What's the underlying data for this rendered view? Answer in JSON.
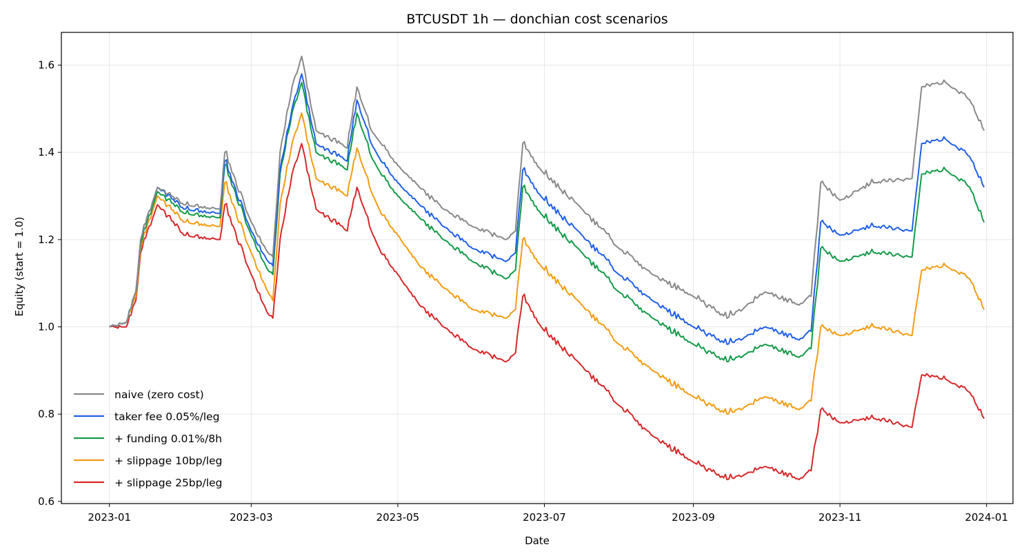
{
  "chart_data": {
    "type": "line",
    "title": "BTCUSDT 1h — donchian cost scenarios",
    "xlabel": "Date",
    "ylabel": "Equity (start = 1.0)",
    "xlim": [
      "2022-12-12",
      "2024-01-12"
    ],
    "ylim": [
      0.595,
      1.675
    ],
    "x_ticks": [
      "2023-01",
      "2023-03",
      "2023-05",
      "2023-07",
      "2023-09",
      "2023-11",
      "2024-01"
    ],
    "y_ticks": [
      "0.6",
      "0.8",
      "1.0",
      "1.2",
      "1.4",
      "1.6"
    ],
    "grid": true,
    "legend_position": "lower-left",
    "x": [
      "2023-01-01",
      "2023-01-08",
      "2023-01-12",
      "2023-01-14",
      "2023-01-21",
      "2023-02-01",
      "2023-02-16",
      "2023-02-18",
      "2023-03-01",
      "2023-03-08",
      "2023-03-10",
      "2023-03-13",
      "2023-03-18",
      "2023-03-22",
      "2023-03-28",
      "2023-04-10",
      "2023-04-14",
      "2023-04-20",
      "2023-04-24",
      "2023-05-01",
      "2023-05-10",
      "2023-05-20",
      "2023-06-01",
      "2023-06-15",
      "2023-06-19",
      "2023-06-22",
      "2023-07-01",
      "2023-07-15",
      "2023-08-01",
      "2023-08-15",
      "2023-09-01",
      "2023-09-15",
      "2023-10-01",
      "2023-10-15",
      "2023-10-20",
      "2023-10-24",
      "2023-11-01",
      "2023-11-15",
      "2023-12-01",
      "2023-12-05",
      "2023-12-15",
      "2023-12-25",
      "2023-12-31"
    ],
    "series": [
      {
        "name": "naive (zero cost)",
        "color": "#888888",
        "values": [
          1.0,
          1.01,
          1.08,
          1.2,
          1.32,
          1.28,
          1.27,
          1.4,
          1.24,
          1.17,
          1.16,
          1.4,
          1.55,
          1.62,
          1.45,
          1.41,
          1.55,
          1.45,
          1.42,
          1.37,
          1.32,
          1.27,
          1.23,
          1.2,
          1.22,
          1.42,
          1.35,
          1.28,
          1.18,
          1.12,
          1.07,
          1.02,
          1.08,
          1.05,
          1.07,
          1.33,
          1.29,
          1.33,
          1.34,
          1.55,
          1.56,
          1.52,
          1.45
        ]
      },
      {
        "name": "taker fee 0.05%/leg",
        "color": "#1f5fe8",
        "values": [
          1.0,
          1.01,
          1.08,
          1.2,
          1.32,
          1.27,
          1.26,
          1.38,
          1.22,
          1.15,
          1.14,
          1.36,
          1.5,
          1.58,
          1.42,
          1.38,
          1.52,
          1.42,
          1.38,
          1.33,
          1.28,
          1.23,
          1.18,
          1.15,
          1.17,
          1.36,
          1.29,
          1.22,
          1.12,
          1.06,
          1.0,
          0.96,
          1.0,
          0.97,
          0.99,
          1.24,
          1.21,
          1.23,
          1.22,
          1.42,
          1.43,
          1.39,
          1.32
        ]
      },
      {
        "name": "+ funding 0.01%/8h",
        "color": "#149a48",
        "values": [
          1.0,
          1.01,
          1.08,
          1.19,
          1.31,
          1.26,
          1.25,
          1.37,
          1.21,
          1.13,
          1.12,
          1.35,
          1.49,
          1.56,
          1.4,
          1.36,
          1.49,
          1.39,
          1.35,
          1.3,
          1.25,
          1.2,
          1.15,
          1.11,
          1.13,
          1.32,
          1.25,
          1.18,
          1.08,
          1.02,
          0.96,
          0.92,
          0.96,
          0.93,
          0.95,
          1.18,
          1.15,
          1.17,
          1.16,
          1.35,
          1.36,
          1.32,
          1.24
        ]
      },
      {
        "name": "+ slippage 10bp/leg",
        "color": "#f39c12",
        "values": [
          1.0,
          1.01,
          1.07,
          1.18,
          1.3,
          1.24,
          1.23,
          1.33,
          1.17,
          1.08,
          1.06,
          1.28,
          1.42,
          1.49,
          1.34,
          1.3,
          1.41,
          1.31,
          1.26,
          1.21,
          1.14,
          1.09,
          1.04,
          1.02,
          1.04,
          1.2,
          1.13,
          1.06,
          0.96,
          0.9,
          0.84,
          0.8,
          0.84,
          0.81,
          0.83,
          1.0,
          0.98,
          1.0,
          0.98,
          1.13,
          1.14,
          1.11,
          1.04
        ]
      },
      {
        "name": "+ slippage 25bp/leg",
        "color": "#d62728",
        "values": [
          1.0,
          1.0,
          1.06,
          1.17,
          1.28,
          1.21,
          1.2,
          1.28,
          1.12,
          1.03,
          1.02,
          1.2,
          1.35,
          1.42,
          1.27,
          1.22,
          1.32,
          1.22,
          1.17,
          1.12,
          1.05,
          1.0,
          0.95,
          0.92,
          0.94,
          1.07,
          0.99,
          0.92,
          0.82,
          0.75,
          0.69,
          0.65,
          0.68,
          0.65,
          0.67,
          0.81,
          0.78,
          0.79,
          0.77,
          0.89,
          0.88,
          0.85,
          0.79
        ]
      }
    ]
  }
}
